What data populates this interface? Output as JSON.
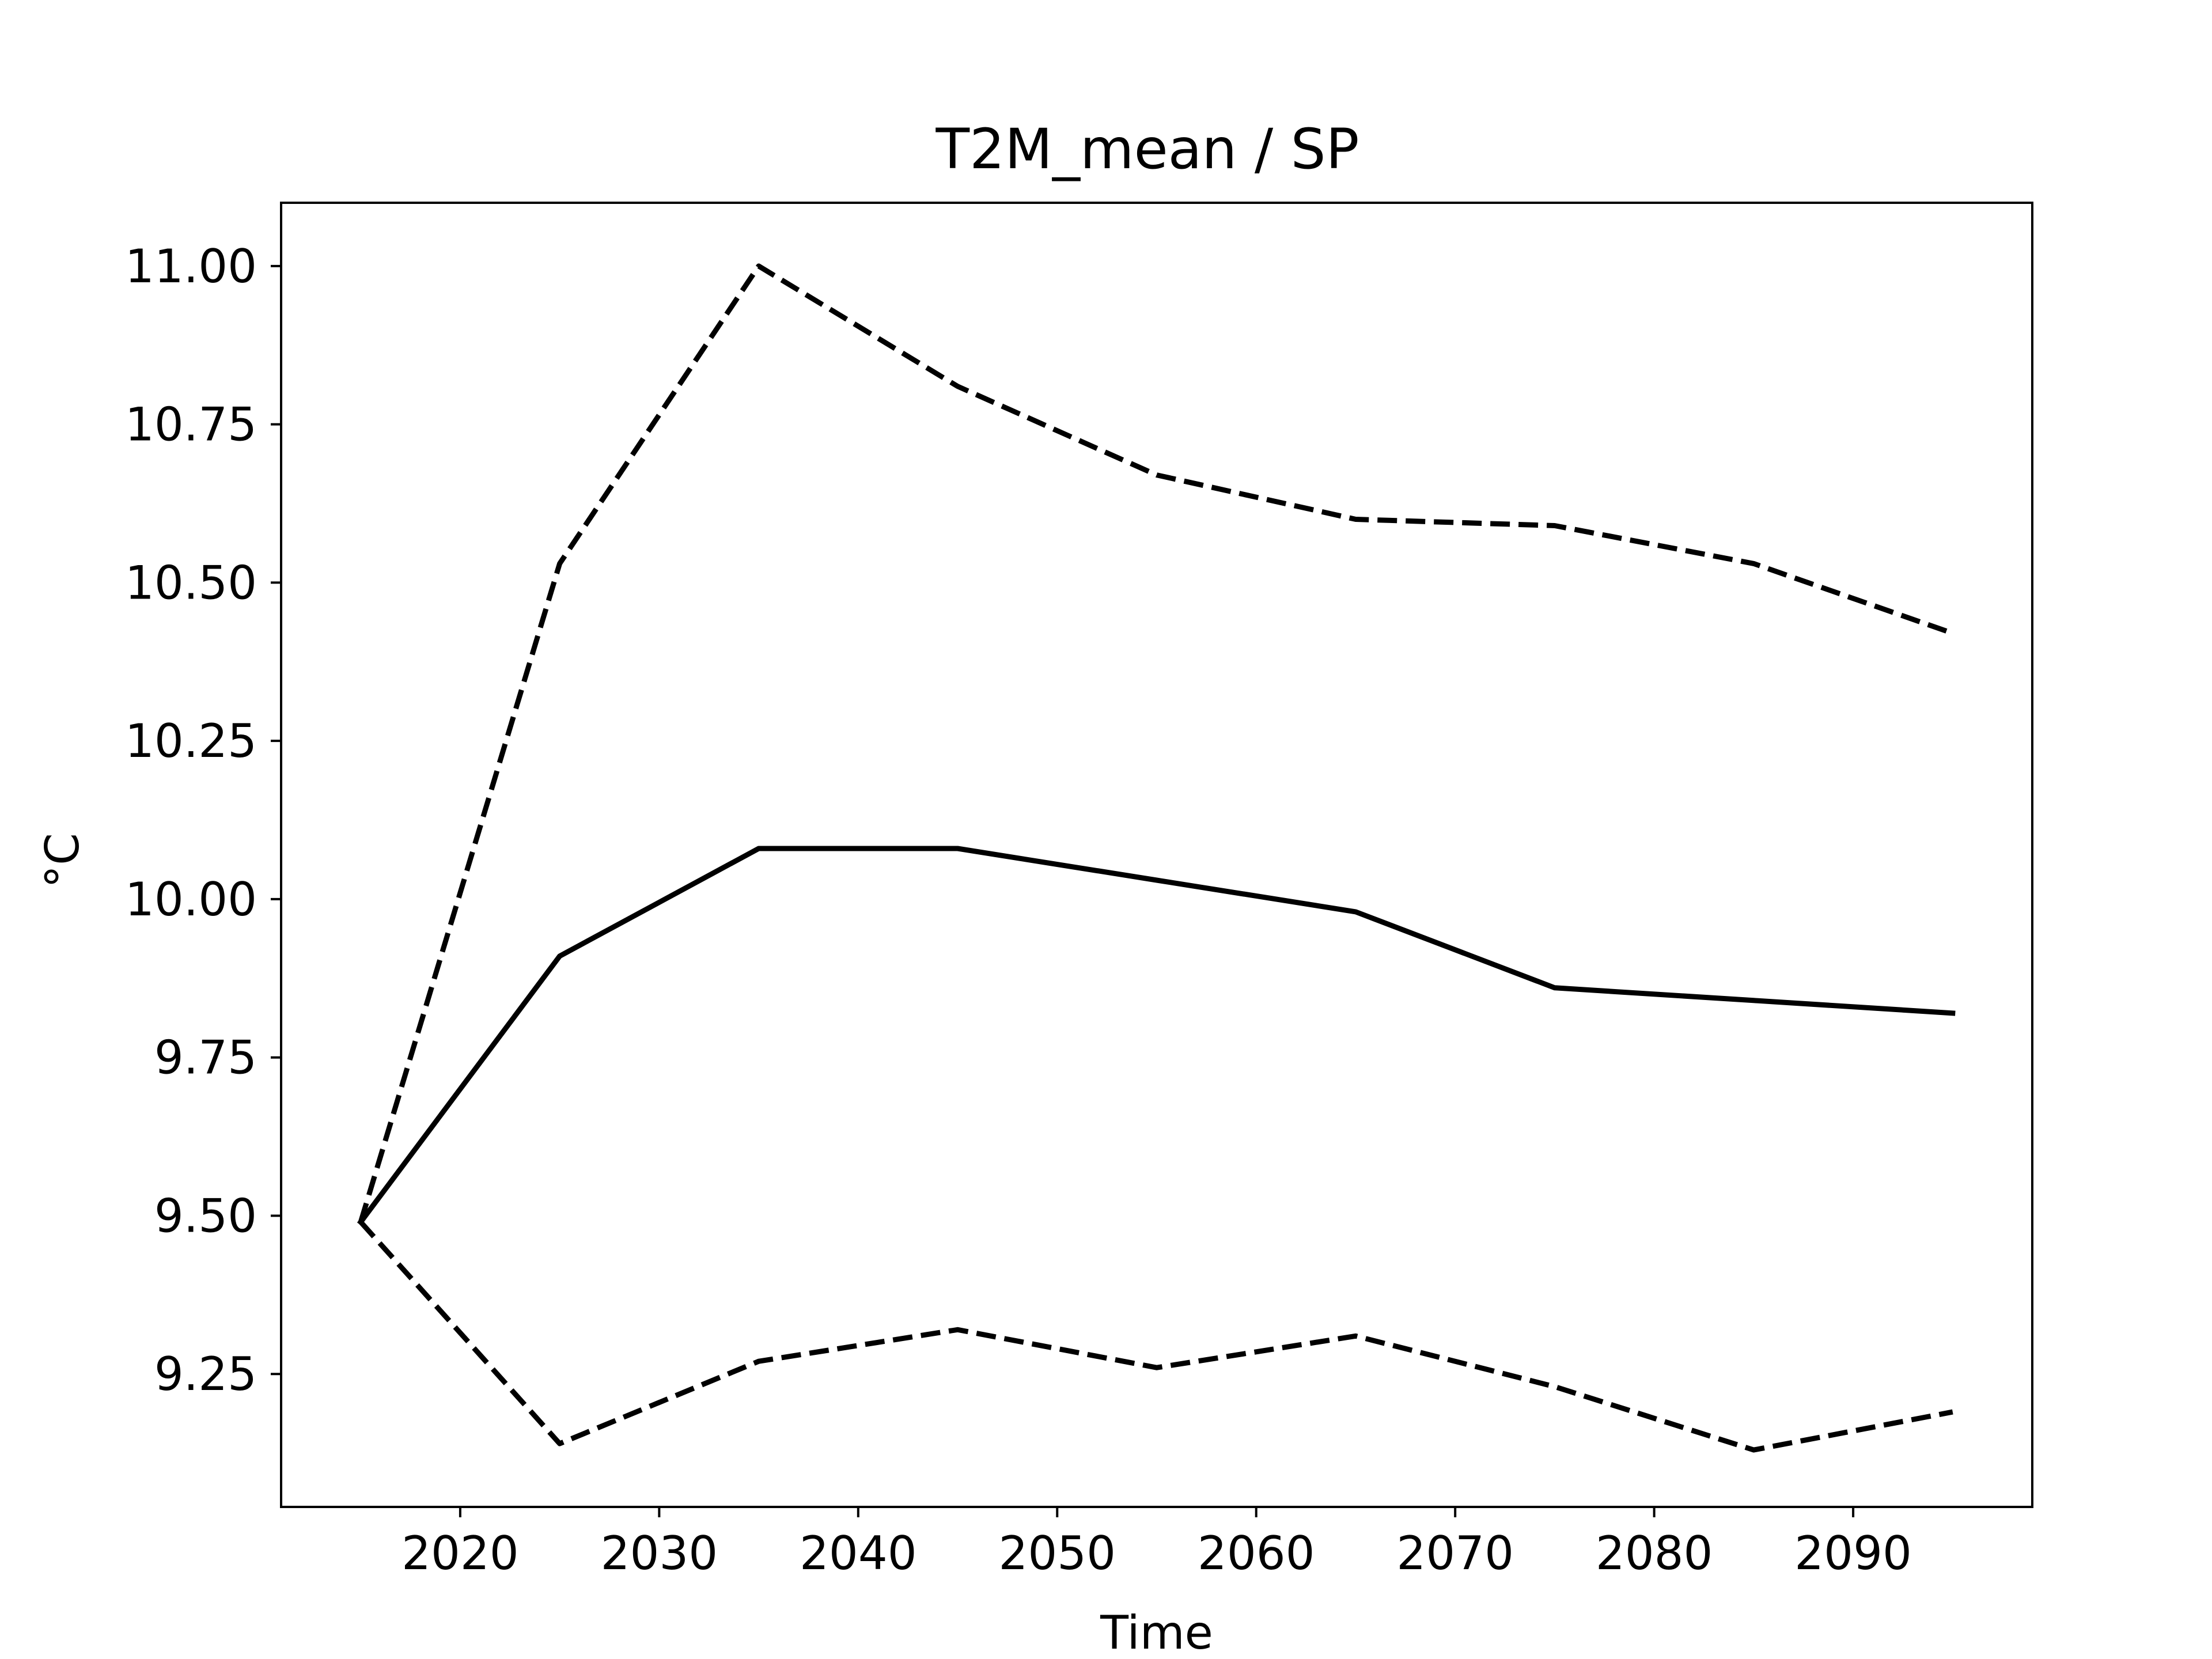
{
  "chart_data": {
    "type": "line",
    "title": "T2M_mean / SP",
    "xlabel": "Time",
    "ylabel": "°C",
    "xlim": [
      2011,
      2099
    ],
    "ylim": [
      9.04,
      11.1
    ],
    "grid": false,
    "x_ticks": [
      2020,
      2030,
      2040,
      2050,
      2060,
      2070,
      2080,
      2090
    ],
    "x_tick_labels": [
      "2020",
      "2030",
      "2040",
      "2050",
      "2060",
      "2070",
      "2080",
      "2090"
    ],
    "y_ticks": [
      9.25,
      9.5,
      9.75,
      10.0,
      10.25,
      10.5,
      10.75,
      11.0
    ],
    "y_tick_labels": [
      "9.25",
      "9.50",
      "9.75",
      "10.00",
      "10.25",
      "10.50",
      "10.75",
      "11.00"
    ],
    "x": [
      2015,
      2025,
      2035,
      2045,
      2055,
      2065,
      2075,
      2085,
      2095
    ],
    "series": [
      {
        "style": "dashed",
        "color": "#000000",
        "values": [
          9.49,
          10.53,
          11.0,
          10.81,
          10.67,
          10.6,
          10.59,
          10.53,
          10.42
        ]
      },
      {
        "style": "solid",
        "color": "#000000",
        "values": [
          9.49,
          9.91,
          10.08,
          10.08,
          10.03,
          9.98,
          9.86,
          9.84,
          9.82
        ]
      },
      {
        "style": "dashed",
        "color": "#000000",
        "values": [
          9.49,
          9.14,
          9.27,
          9.32,
          9.26,
          9.31,
          9.23,
          9.13,
          9.19
        ]
      }
    ]
  }
}
